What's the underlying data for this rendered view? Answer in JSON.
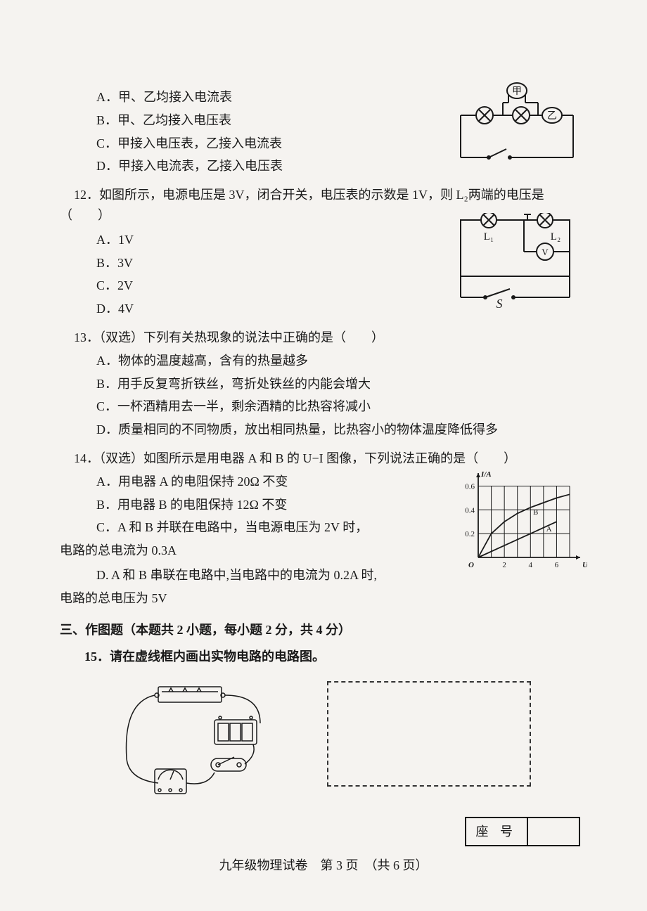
{
  "q11": {
    "options": {
      "A": "A．甲、乙均接入电流表",
      "B": "B．甲、乙均接入电压表",
      "C": "C．甲接入电压表，乙接入电流表",
      "D": "D．甲接入电流表，乙接入电压表"
    }
  },
  "q12": {
    "stem": "12．如图所示，电源电压是 3V，闭合开关，电压表的示数是 1V，则 L₂两端的电压是",
    "paren": "（　　）",
    "options": {
      "A": "A．1V",
      "B": "B．3V",
      "C": "C．2V",
      "D": "D．4V"
    }
  },
  "q13": {
    "stem": "13．（双选）下列有关热现象的说法中正确的是（　　）",
    "options": {
      "A": "A．物体的温度越高，含有的热量越多",
      "B": "B．用手反复弯折铁丝，弯折处铁丝的内能会增大",
      "C": "C．一杯酒精用去一半，剩余酒精的比热容将减小",
      "D": "D．质量相同的不同物质，放出相同热量，比热容小的物体温度降低得多"
    }
  },
  "q14": {
    "stem": "14．（双选）如图所示是用电器 A 和 B 的 U−I 图像，下列说法正确的是（　　）",
    "options": {
      "A": "A．用电器 A 的电阻保持 20Ω 不变",
      "B": "B．用电器 B 的电阻保持 12Ω 不变",
      "C1": "C．A 和 B 并联在电路中，当电源电压为 2V 时，",
      "C2": "电路的总电流为 0.3A",
      "D1": "D. A 和 B 串联在电路中,当电路中的电流为 0.2A 时,",
      "D2": "电路的总电压为 5V"
    },
    "chart": {
      "type": "line",
      "xlabel": "U/V",
      "ylabel": "I/A",
      "xlim": [
        0,
        7
      ],
      "ylim": [
        0,
        0.65
      ],
      "xticks": [
        0,
        2,
        4,
        6
      ],
      "yticks": [
        0.2,
        0.4,
        0.6
      ],
      "grid_color": "#1a1a1a",
      "line_color": "#1a1a1a",
      "series": {
        "A": {
          "label": "A",
          "points": [
            [
              0,
              0
            ],
            [
              2,
              0.1
            ],
            [
              4,
              0.2
            ],
            [
              6,
              0.3
            ]
          ]
        },
        "B": {
          "label": "B",
          "points": [
            [
              0,
              0
            ],
            [
              1,
              0.2
            ],
            [
              2,
              0.3
            ],
            [
              3,
              0.37
            ],
            [
              4,
              0.42
            ],
            [
              5,
              0.46
            ],
            [
              6,
              0.5
            ],
            [
              7,
              0.53
            ]
          ]
        }
      },
      "label_fontsize": 11
    }
  },
  "section3": {
    "heading": "三、作图题（本题共 2 小题，每小题 2 分，共 4 分）",
    "q15": "15．请在虚线框内画出实物电路的电路图。"
  },
  "seat": {
    "label": "座 号",
    "value": ""
  },
  "footer": "九年级物理试卷　第 3 页　（共 6 页）",
  "circuit11": {
    "stroke": "#1a1a1a",
    "labels": {
      "jia": "甲",
      "yi": "乙"
    }
  },
  "circuit12": {
    "stroke": "#1a1a1a",
    "labels": {
      "L1": "L₁",
      "L2": "L₂",
      "S": "S",
      "V": "V"
    }
  }
}
